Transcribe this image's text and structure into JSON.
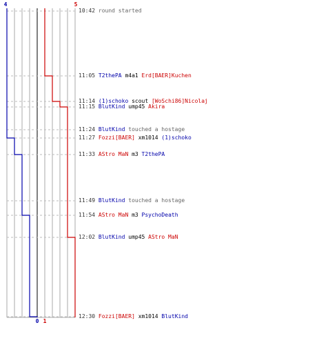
{
  "colors": {
    "blue_team": "#0000aa",
    "red_team": "#cc0000",
    "neutral": "#000000",
    "info": "#666666",
    "grid": "#aaaaaa",
    "grid_dashed": "#bbbbbb"
  },
  "score_labels": {
    "blue_top": "4",
    "red_top": "5",
    "blue_bottom": "0",
    "red_bottom": "1"
  },
  "events": [
    {
      "time": "10:42",
      "parts": [
        {
          "text": "round started",
          "team": "info"
        }
      ]
    },
    {
      "time": "11:05",
      "parts": [
        {
          "text": "T2thePA",
          "team": "blue"
        },
        {
          "text": " m4a1 ",
          "team": "neutral"
        },
        {
          "text": "Erd[BAER]Kuchen",
          "team": "red"
        }
      ]
    },
    {
      "time": "11:14",
      "parts": [
        {
          "text": "(1)schoko",
          "team": "blue"
        },
        {
          "text": " scout ",
          "team": "neutral"
        },
        {
          "text": "[WoSchi86]Nicolaj",
          "team": "red"
        }
      ]
    },
    {
      "time": "11:15",
      "parts": [
        {
          "text": "BlutKind",
          "team": "blue"
        },
        {
          "text": " ump45 ",
          "team": "neutral"
        },
        {
          "text": "Akira",
          "team": "red"
        }
      ]
    },
    {
      "time": "11:24",
      "parts": [
        {
          "text": "BlutKind",
          "team": "blue"
        },
        {
          "text": " touched a hostage",
          "team": "info"
        }
      ]
    },
    {
      "time": "11:27",
      "parts": [
        {
          "text": "Fozzi[BAER]",
          "team": "red"
        },
        {
          "text": " xm1014 ",
          "team": "neutral"
        },
        {
          "text": "(1)schoko",
          "team": "blue"
        }
      ]
    },
    {
      "time": "11:33",
      "parts": [
        {
          "text": "AStro MaN",
          "team": "red"
        },
        {
          "text": " m3 ",
          "team": "neutral"
        },
        {
          "text": "T2thePA",
          "team": "blue"
        }
      ]
    },
    {
      "time": "11:49",
      "parts": [
        {
          "text": "BlutKind",
          "team": "blue"
        },
        {
          "text": " touched a hostage",
          "team": "info"
        }
      ]
    },
    {
      "time": "11:54",
      "parts": [
        {
          "text": "AStro MaN",
          "team": "red"
        },
        {
          "text": " m3 ",
          "team": "neutral"
        },
        {
          "text": "PsychoDeath",
          "team": "blue"
        }
      ]
    },
    {
      "time": "12:02",
      "parts": [
        {
          "text": "BlutKind",
          "team": "blue"
        },
        {
          "text": " ump45 ",
          "team": "neutral"
        },
        {
          "text": "AStro MaN",
          "team": "red"
        }
      ]
    },
    {
      "time": "12:30",
      "parts": [
        {
          "text": "Fozzi[BAER]",
          "team": "red"
        },
        {
          "text": " xm1014 ",
          "team": "neutral"
        },
        {
          "text": "BlutKind",
          "team": "blue"
        }
      ]
    }
  ],
  "players_alive": {
    "blue": [
      4,
      4,
      4,
      4,
      4,
      4,
      3,
      2,
      2,
      1,
      1,
      0
    ],
    "red": [
      5,
      5,
      4,
      3,
      2,
      2,
      2,
      2,
      2,
      2,
      1,
      1
    ]
  }
}
